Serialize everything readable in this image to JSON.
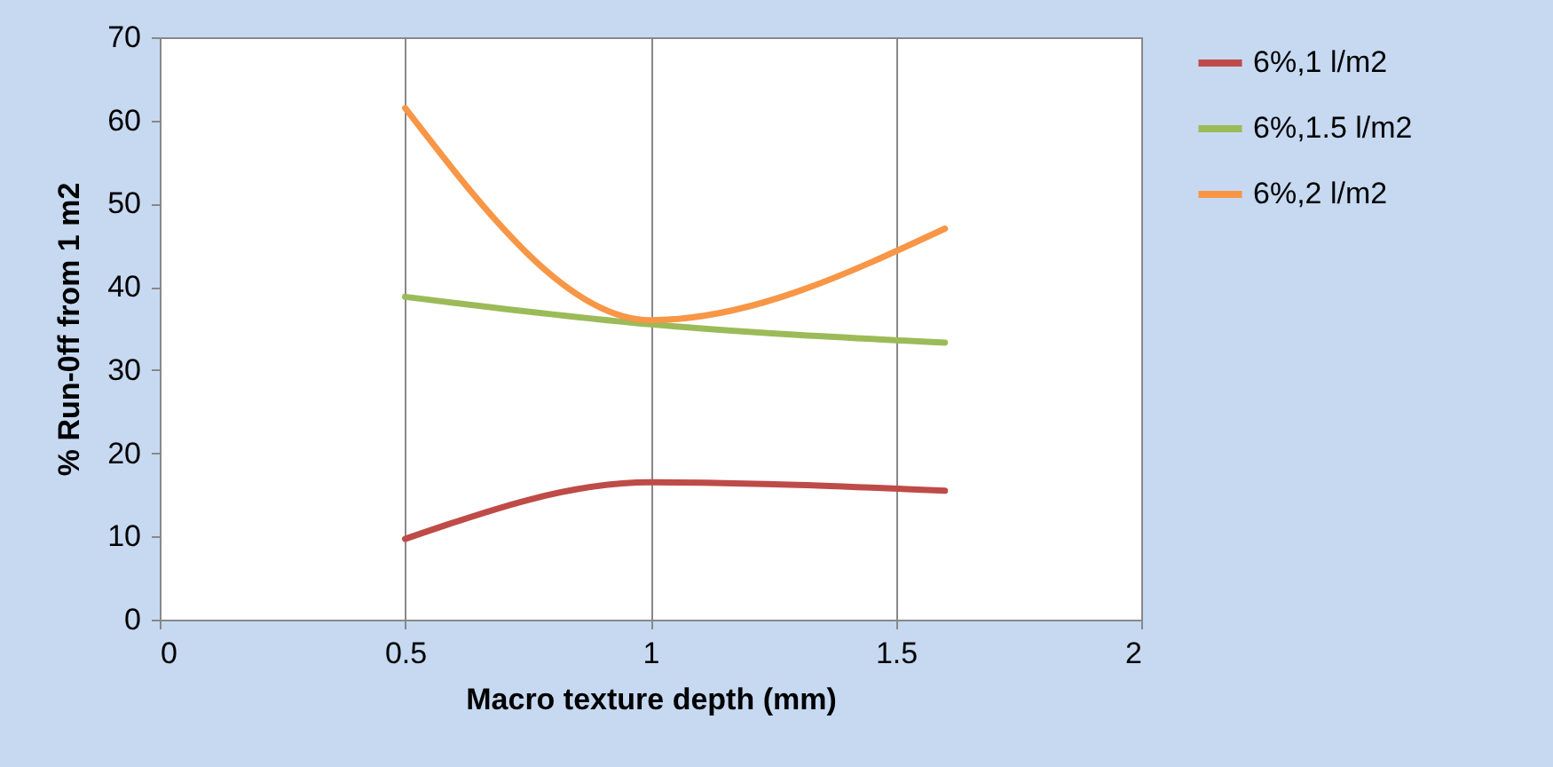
{
  "chart_data": {
    "type": "line",
    "xlabel": "Macro texture depth (mm)",
    "ylabel": "% Run-0ff from 1 m2",
    "x": [
      0.5,
      1.0,
      1.6
    ],
    "series": [
      {
        "name": "6%,1 l/m2",
        "color": "#be4b48",
        "values": [
          9.7,
          16.5,
          15.5
        ]
      },
      {
        "name": "6%,1.5 l/m2",
        "color": "#9bbb59",
        "values": [
          38.8,
          35.5,
          33.3
        ]
      },
      {
        "name": "6%,2 l/m2",
        "color": "#f79646",
        "values": [
          61.5,
          36,
          47
        ]
      }
    ],
    "xlim": [
      0,
      2
    ],
    "xticks": [
      0,
      0.5,
      1,
      1.5,
      2
    ],
    "ylim": [
      0,
      70
    ],
    "yticks": [
      0,
      10,
      20,
      30,
      40,
      50,
      60,
      70
    ],
    "grid": "x",
    "legend": "right",
    "line_style": "solid",
    "marker": "none"
  }
}
